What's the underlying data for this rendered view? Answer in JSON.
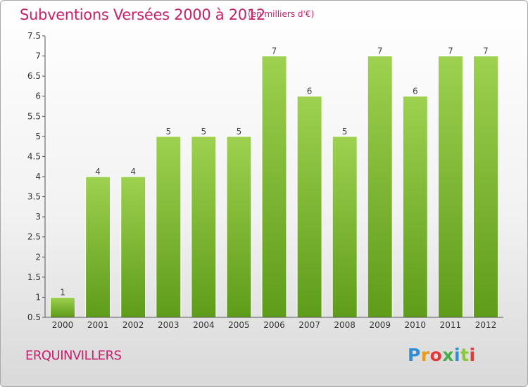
{
  "header": {
    "title": "Subventions Versées 2000 à 2012",
    "unit_note": "(en milliers d'€)"
  },
  "footer": {
    "commune": "ERQUINVILLERS",
    "logo_text": "Proxiti"
  },
  "colors": {
    "title": "#c7216d",
    "bar_top": "#9ed150",
    "bar_bottom": "#5e9c19",
    "axis": "#555555"
  },
  "chart_data": {
    "type": "bar",
    "title": "Subventions Versées 2000 à 2012",
    "subtitle": "(en milliers d'€)",
    "categories": [
      "2000",
      "2001",
      "2002",
      "2003",
      "2004",
      "2005",
      "2006",
      "2007",
      "2008",
      "2009",
      "2010",
      "2011",
      "2012"
    ],
    "values": [
      1,
      4,
      4,
      5,
      5,
      5,
      7,
      6,
      5,
      7,
      6,
      7,
      7
    ],
    "ylim": [
      0.5,
      7.5
    ],
    "yticks": [
      0.5,
      1,
      1.5,
      2,
      2.5,
      3,
      3.5,
      4,
      4.5,
      5,
      5.5,
      6,
      6.5,
      7,
      7.5
    ],
    "ytick_labels": [
      "0.5",
      "1",
      "1.5",
      "2",
      "2.5",
      "3",
      "3.5",
      "4",
      "4.5",
      "5",
      "5.5",
      "6",
      "6.5",
      "7",
      "7.5"
    ],
    "xlabel": "",
    "ylabel": "",
    "grid": false,
    "legend": "none"
  }
}
